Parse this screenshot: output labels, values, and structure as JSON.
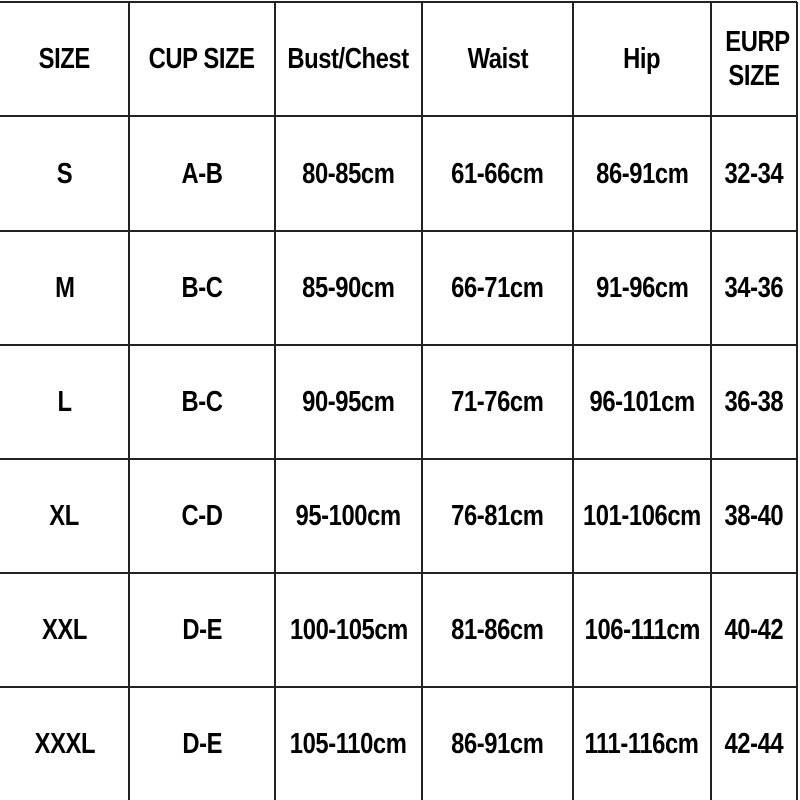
{
  "headers": [
    "SIZE",
    "CUP SIZE",
    "Bust/Chest",
    "Waist",
    "Hip",
    "EURP SIZE"
  ],
  "rows": [
    [
      "S",
      "A-B",
      "80-85cm",
      "61-66cm",
      "86-91cm",
      "32-34"
    ],
    [
      "M",
      "B-C",
      "85-90cm",
      "66-71cm",
      "91-96cm",
      "34-36"
    ],
    [
      "L",
      "B-C",
      "90-95cm",
      "71-76cm",
      "96-101cm",
      "36-38"
    ],
    [
      "XL",
      "C-D",
      "95-100cm",
      "76-81cm",
      "101-106cm",
      "38-40"
    ],
    [
      "XXL",
      "D-E",
      "100-105cm",
      "81-86cm",
      "106-111cm",
      "40-42"
    ],
    [
      "XXXL",
      "D-E",
      "105-110cm",
      "86-91cm",
      "111-116cm",
      "42-44"
    ]
  ]
}
